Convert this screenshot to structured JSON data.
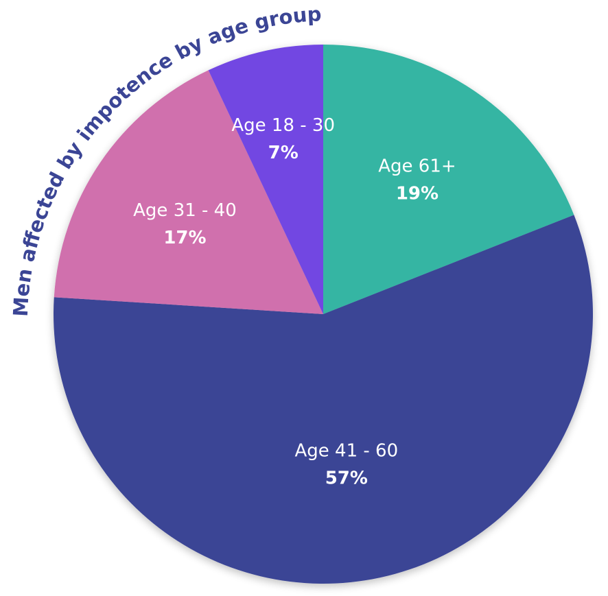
{
  "chart_data": {
    "type": "pie",
    "title": "Men affected by impotence by age group",
    "slices": [
      {
        "label": "Age 61+",
        "value_label": "19%",
        "value": 19,
        "color": "#35b5a3"
      },
      {
        "label": "Age 41 - 60",
        "value_label": "57%",
        "value": 57,
        "color": "#3b4595"
      },
      {
        "label": "Age 31 - 40",
        "value_label": "17%",
        "value": 17,
        "color": "#d06fad"
      },
      {
        "label": "Age 18 - 30",
        "value_label": "7%",
        "value": 7,
        "color": "#7247e2"
      }
    ]
  },
  "colors": {
    "title": "#3b4595",
    "label_text": "#ffffff"
  }
}
